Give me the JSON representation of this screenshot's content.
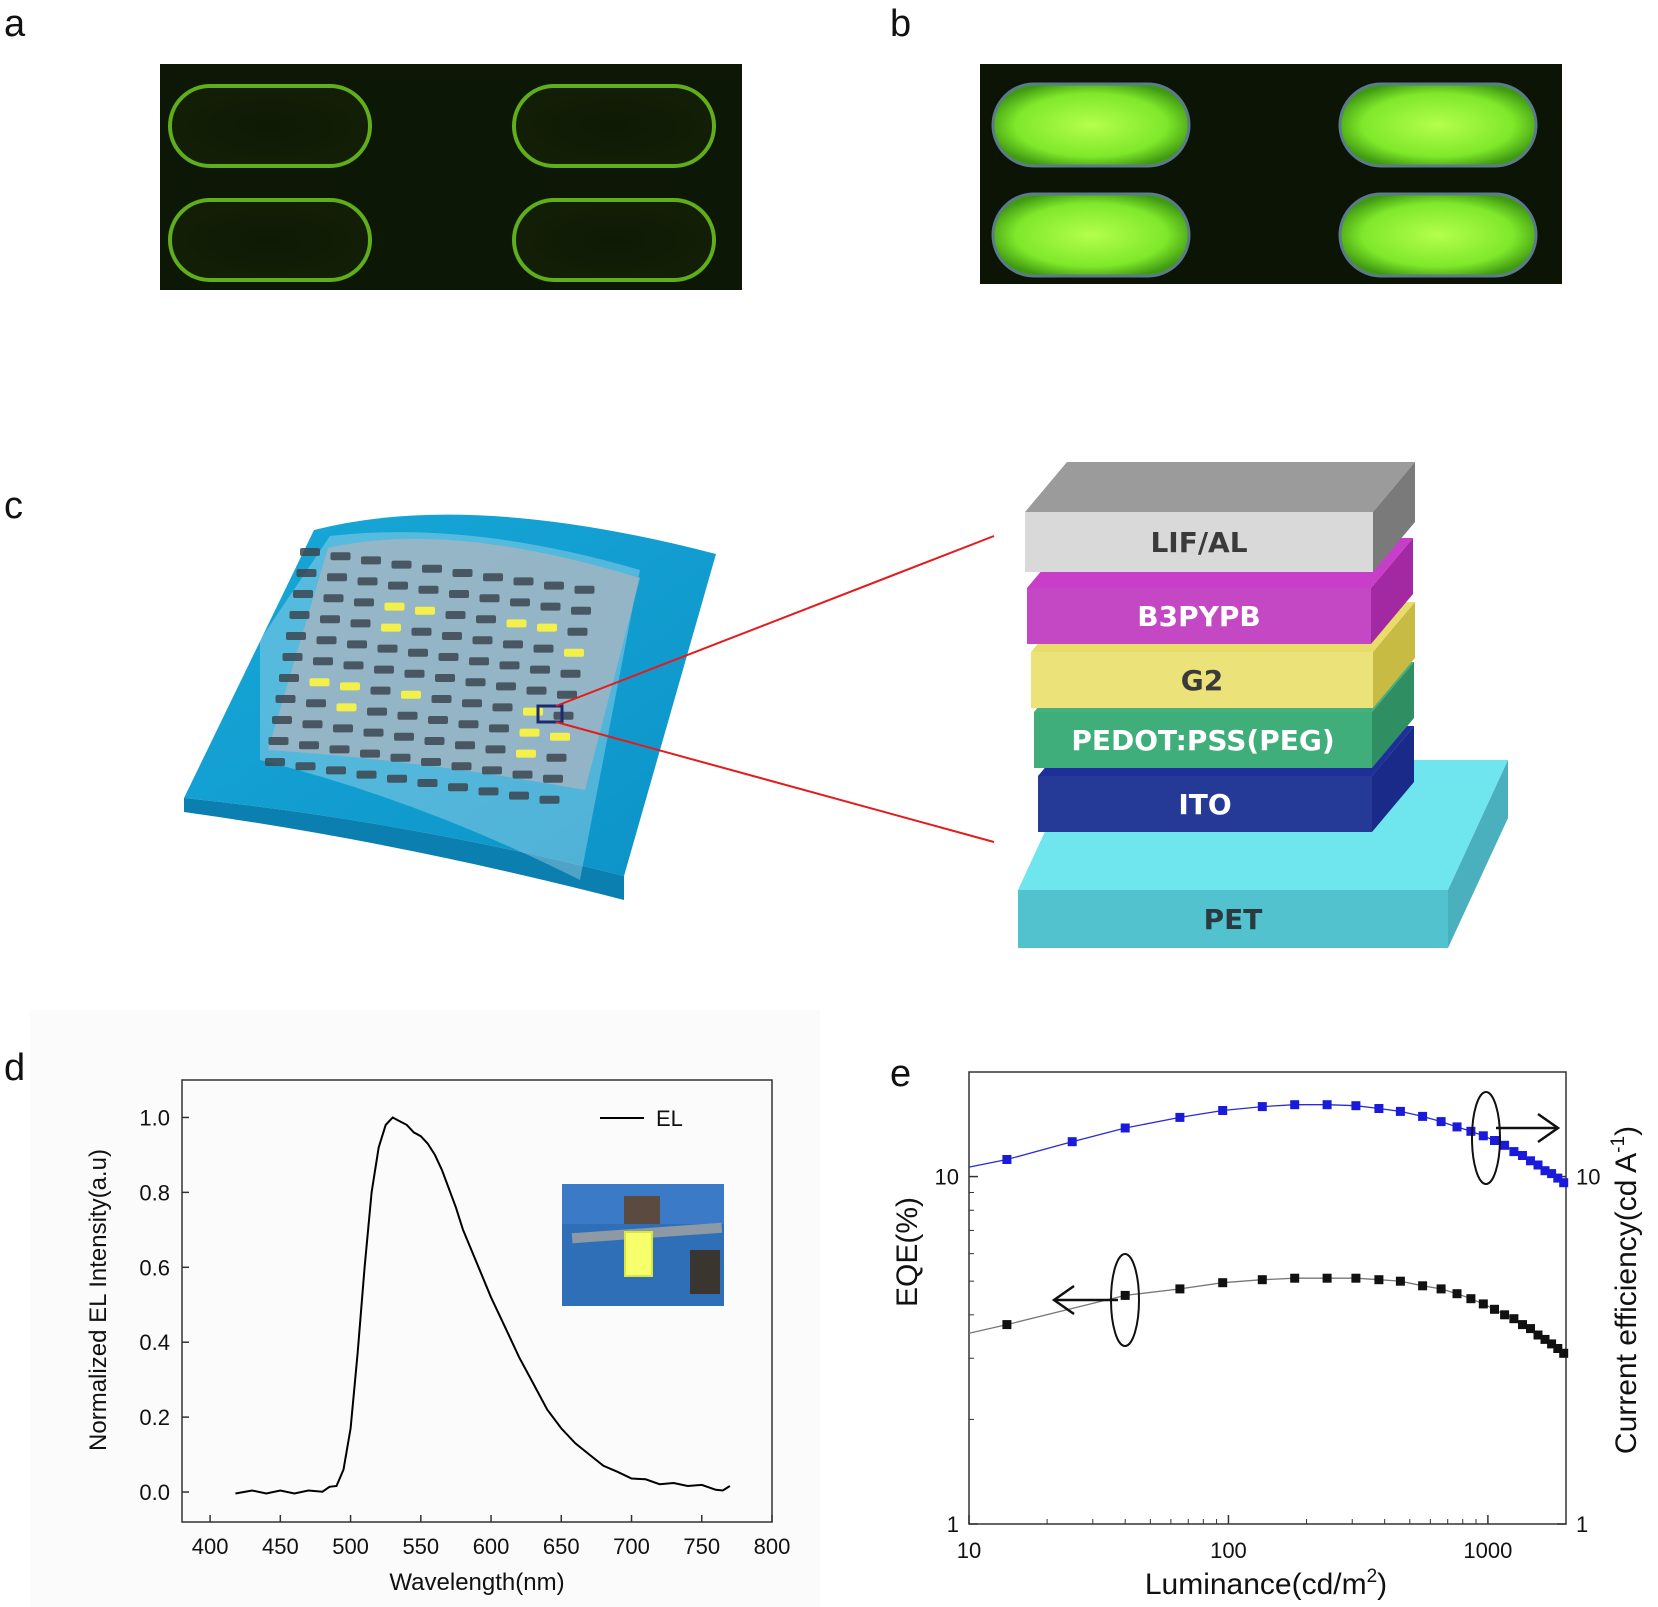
{
  "panels": {
    "a": "a",
    "b": "b",
    "c": "c",
    "d": "d",
    "e": "e"
  },
  "stack_layers": [
    {
      "label": "LIF/AL",
      "top": "#9b9b9b",
      "front": "#d9d9d9",
      "side": "#7a7a7a",
      "text": "#3a3a3a"
    },
    {
      "label": "B3PYPB",
      "top": "#c93ec9",
      "front": "#c447c4",
      "side": "#a329a3",
      "text": "#ffffff"
    },
    {
      "label": "G2",
      "top": "#e8dc6a",
      "front": "#ece27a",
      "side": "#c8bb43",
      "text": "#3a3a3a"
    },
    {
      "label": "PEDOT:PSS(PEG)",
      "top": "#43b07e",
      "front": "#3fae7b",
      "side": "#2f8f62",
      "text": "#ffffff"
    },
    {
      "label": "ITO",
      "top": "#1f2f9a",
      "front": "#243a96",
      "side": "#1a2a88",
      "text": "#ffffff"
    },
    {
      "label": "PET",
      "top": "#6fe6ee",
      "front": "#52c2cf",
      "side": "#4ab0bd",
      "text": "#2a3a40"
    }
  ],
  "chart_data": [
    {
      "panel": "d",
      "type": "line",
      "xlabel": "Wavelength(nm)",
      "ylabel": "Normalized EL Intensity(a.u)",
      "xlim": [
        380,
        800
      ],
      "ylim": [
        -0.08,
        1.1
      ],
      "xticks": [
        400,
        450,
        500,
        550,
        600,
        650,
        700,
        750,
        800
      ],
      "yticks": [
        0.0,
        0.2,
        0.4,
        0.6,
        0.8,
        1.0
      ],
      "xtick_labels": [
        "400",
        "450",
        "500",
        "550",
        "600",
        "650",
        "700",
        "750",
        "800"
      ],
      "ytick_labels": [
        "0.0",
        "0.2",
        "0.4",
        "0.6",
        "0.8",
        "1.0"
      ],
      "legend": "top-right",
      "series": [
        {
          "name": "EL",
          "color": "#000000",
          "x": [
            418,
            430,
            440,
            450,
            460,
            470,
            480,
            485,
            490,
            495,
            500,
            505,
            510,
            515,
            520,
            525,
            530,
            535,
            540,
            545,
            550,
            555,
            560,
            565,
            570,
            575,
            580,
            590,
            600,
            610,
            620,
            630,
            640,
            650,
            660,
            670,
            680,
            690,
            700,
            710,
            720,
            730,
            740,
            750,
            760,
            765,
            770
          ],
          "y": [
            0.0,
            0.0,
            0.0,
            0.0,
            0.0,
            0.0,
            0.005,
            0.01,
            0.02,
            0.06,
            0.17,
            0.37,
            0.6,
            0.8,
            0.92,
            0.98,
            1.0,
            0.99,
            0.98,
            0.96,
            0.95,
            0.93,
            0.9,
            0.86,
            0.81,
            0.76,
            0.7,
            0.61,
            0.52,
            0.44,
            0.36,
            0.29,
            0.22,
            0.17,
            0.13,
            0.1,
            0.07,
            0.05,
            0.04,
            0.03,
            0.025,
            0.02,
            0.02,
            0.015,
            0.01,
            0.0,
            0.02
          ]
        }
      ]
    },
    {
      "panel": "e",
      "type": "scatter",
      "xlabel_main": "Luminance(cd/m",
      "xlabel_sup": "2",
      "xlabel_end": ")",
      "ylabel": "EQE(%)",
      "y2label_main": "Current efficiency(cd A",
      "y2label_sup": "-1",
      "y2label_end": ")",
      "xscale": "log",
      "yscale": "log",
      "xlim": [
        10,
        2000
      ],
      "ylim": [
        1,
        20
      ],
      "y2lim": [
        1,
        20
      ],
      "xticks": [
        10,
        100,
        1000
      ],
      "xtick_labels": [
        "10",
        "100",
        "1000"
      ],
      "yticks": [
        1,
        10
      ],
      "ytick_labels": [
        "1",
        "10"
      ],
      "y2ticks": [
        1,
        10
      ],
      "y2tick_labels": [
        "1",
        "10"
      ],
      "series": [
        {
          "axis": "right",
          "color": "#1a1adb",
          "x": [
            14,
            25,
            40,
            65,
            95,
            135,
            180,
            240,
            310,
            380,
            460,
            560,
            660,
            760,
            860,
            960,
            1060,
            1160,
            1260,
            1360,
            1460,
            1560,
            1660,
            1760,
            1860,
            1960
          ],
          "y": [
            11.2,
            12.6,
            13.8,
            14.8,
            15.5,
            15.9,
            16.1,
            16.1,
            16.0,
            15.7,
            15.4,
            14.9,
            14.4,
            13.9,
            13.5,
            13.1,
            12.7,
            12.3,
            11.8,
            11.5,
            11.1,
            10.8,
            10.4,
            10.2,
            9.9,
            9.6
          ]
        },
        {
          "axis": "left",
          "color": "#111111",
          "x": [
            14,
            40,
            65,
            95,
            135,
            180,
            240,
            310,
            380,
            460,
            560,
            660,
            760,
            860,
            960,
            1060,
            1160,
            1260,
            1360,
            1460,
            1560,
            1660,
            1760,
            1860,
            1960
          ],
          "y": [
            3.75,
            4.55,
            4.75,
            4.95,
            5.05,
            5.1,
            5.1,
            5.1,
            5.05,
            5.0,
            4.85,
            4.75,
            4.6,
            4.45,
            4.3,
            4.15,
            4.0,
            3.9,
            3.75,
            3.65,
            3.5,
            3.4,
            3.3,
            3.2,
            3.1
          ]
        }
      ]
    }
  ]
}
